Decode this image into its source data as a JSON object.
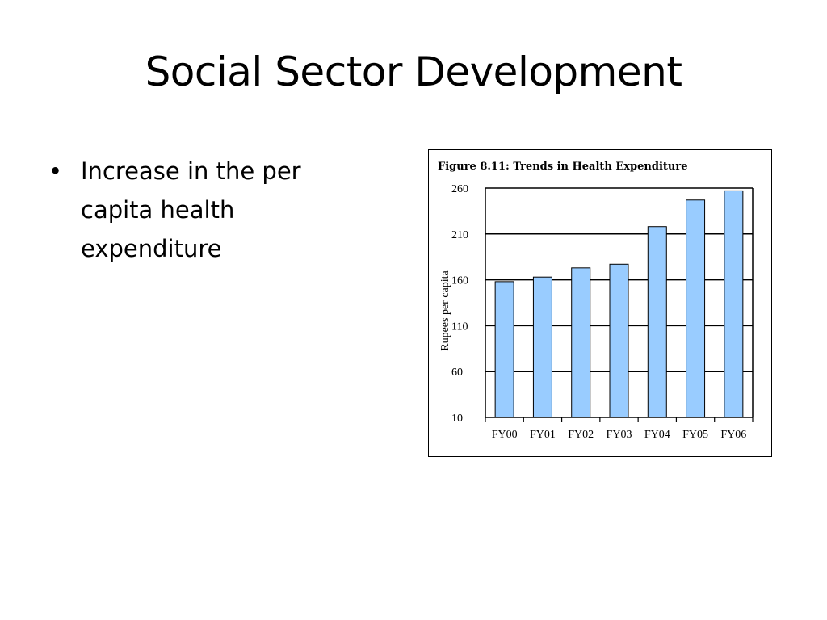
{
  "slide": {
    "title": "Social Sector Development",
    "bullets": [
      "Increase in the per capita health expenditure"
    ]
  },
  "chart_data": {
    "type": "bar",
    "title": "Figure 8.11: Trends in Health Expenditure",
    "xlabel": "",
    "ylabel": "Rupees per capita",
    "categories": [
      "FY00",
      "FY01",
      "FY02",
      "FY03",
      "FY04",
      "FY05",
      "FY06"
    ],
    "values": [
      158,
      163,
      173,
      177,
      218,
      247,
      257
    ],
    "ylim": [
      10,
      260
    ],
    "yticks": [
      10,
      60,
      110,
      160,
      210,
      260
    ],
    "grid": "horizontal",
    "colors": {
      "bar_fill": "#99ccff",
      "bar_stroke": "#000000"
    }
  }
}
